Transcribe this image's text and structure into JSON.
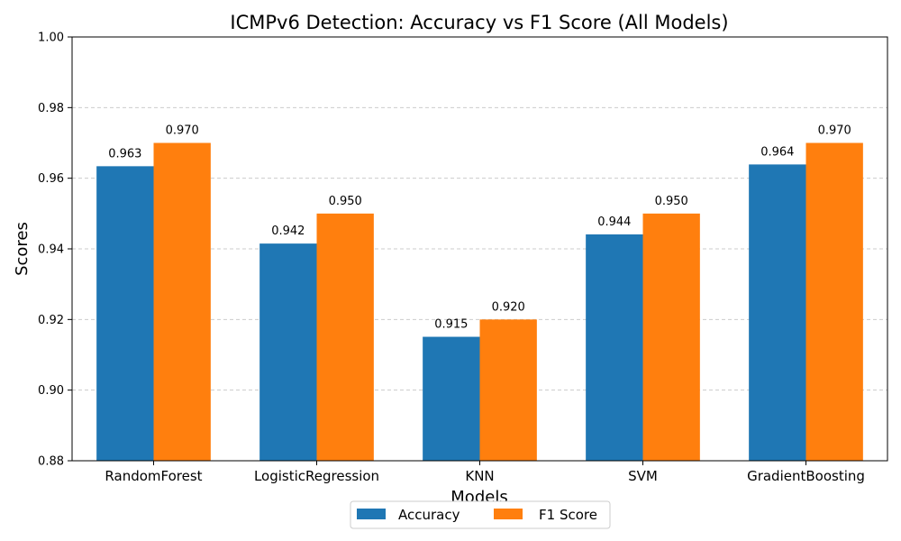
{
  "chart_data": {
    "type": "bar",
    "title": "ICMPv6 Detection: Accuracy vs F1 Score (All Models)",
    "xlabel": "Models",
    "ylabel": "Scores",
    "categories": [
      "RandomForest",
      "LogisticRegression",
      "KNN",
      "SVM",
      "GradientBoosting"
    ],
    "series": [
      {
        "name": "Accuracy",
        "color": "#1f77b4",
        "values": [
          0.9634,
          0.9415,
          0.9151,
          0.9441,
          0.9639
        ],
        "labels": [
          "0.963",
          "0.942",
          "0.915",
          "0.944",
          "0.964"
        ]
      },
      {
        "name": "F1 Score",
        "color": "#ff7f0e",
        "values": [
          0.97,
          0.95,
          0.92,
          0.95,
          0.97
        ],
        "labels": [
          "0.970",
          "0.950",
          "0.920",
          "0.950",
          "0.970"
        ]
      }
    ],
    "ylim": [
      0.88,
      1.0
    ],
    "yticks": [
      0.88,
      0.9,
      0.92,
      0.94,
      0.96,
      0.98,
      1.0
    ],
    "ytick_labels": [
      "0.88",
      "0.90",
      "0.92",
      "0.94",
      "0.96",
      "0.98",
      "1.00"
    ],
    "grid": "y-dashed",
    "legend_placement": "bottom-center"
  }
}
